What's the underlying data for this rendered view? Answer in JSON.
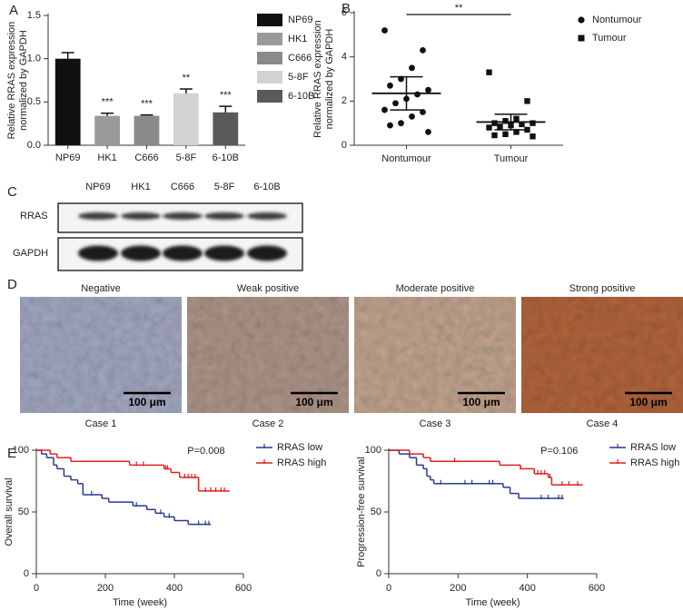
{
  "chart_data": [
    {
      "type": "bar",
      "panel": "A",
      "ylabel": [
        "Relative RRAS expression",
        "normalized by GAPDH"
      ],
      "categories": [
        "NP69",
        "HK1",
        "C666",
        "5-8F",
        "6-10B"
      ],
      "values": [
        1.0,
        0.34,
        0.34,
        0.6,
        0.38
      ],
      "errors": [
        0.07,
        0.03,
        0.01,
        0.05,
        0.07
      ],
      "colors": [
        "#111111",
        "#9a9a9a",
        "#8a8a8a",
        "#d2d2d2",
        "#5a5a5a"
      ],
      "significance": [
        null,
        "***",
        "***",
        "**",
        "***"
      ],
      "ylim": [
        0,
        1.5
      ],
      "yticks": [
        {
          "value": 0,
          "label": "0.0"
        },
        0.5,
        {
          "value": 1,
          "label": "1.0"
        },
        1.5
      ],
      "legend": "right"
    },
    {
      "type": "scatter",
      "panel": "B",
      "ylabel": [
        "Relative RRAS expression",
        "normalized by GAPDH"
      ],
      "categories": [
        "Nontumour",
        "Tumour"
      ],
      "series": [
        {
          "name": "Nontumour",
          "marker": "circle",
          "color": "#111111",
          "values": [
            5.2,
            4.3,
            3.5,
            3.0,
            2.7,
            2.5,
            2.3,
            2.1,
            1.9,
            1.6,
            1.5,
            1.3,
            1.0,
            0.9,
            0.6
          ],
          "mean": 2.35,
          "error": 0.75
        },
        {
          "name": "Tumour",
          "marker": "square",
          "color": "#111111",
          "values": [
            3.3,
            2.0,
            1.2,
            1.1,
            1.0,
            1.0,
            0.95,
            0.9,
            0.85,
            0.8,
            0.7,
            0.6,
            0.5,
            0.45,
            0.4
          ],
          "mean": 1.05,
          "error": 0.35
        }
      ],
      "significance": "**",
      "ylim": [
        0,
        6
      ],
      "yticks": [
        0,
        2,
        4,
        6
      ],
      "legend": "right"
    },
    {
      "type": "line",
      "step": true,
      "panel": "E",
      "ylabel": "Overall survival",
      "xlabel": "Time (week)",
      "annotation": "P=0.008",
      "series": [
        {
          "name": "RRAS low",
          "color": "#2b3990",
          "x": [
            0,
            15,
            30,
            50,
            60,
            80,
            100,
            120,
            135,
            190,
            210,
            280,
            320,
            345,
            370,
            400,
            440,
            505
          ],
          "values": [
            100,
            97,
            94,
            88,
            85,
            79,
            76,
            73,
            64,
            61,
            58,
            55,
            52,
            49,
            46,
            43,
            40,
            40
          ],
          "censored": [
            160,
            290,
            360,
            385,
            470,
            490,
            500
          ]
        },
        {
          "name": "RRAS high",
          "color": "#e0201f",
          "x": [
            0,
            40,
            60,
            100,
            270,
            370,
            390,
            415,
            470,
            560
          ],
          "values": [
            100,
            97,
            94,
            91,
            88,
            85,
            82,
            78,
            67,
            67
          ],
          "censored": [
            290,
            310,
            375,
            380,
            430,
            440,
            450,
            460,
            490,
            505,
            520,
            535,
            545
          ]
        }
      ],
      "xlim": [
        0,
        600
      ],
      "xticks": [
        0,
        200,
        400,
        600
      ],
      "ylim": [
        0,
        100
      ],
      "yticks": [
        0,
        50,
        100
      ],
      "legend": "top right"
    },
    {
      "type": "line",
      "step": true,
      "ylabel": "Progression-free survival",
      "xlabel": "Time (week)",
      "annotation": "P=0.106",
      "series": [
        {
          "name": "RRAS low",
          "color": "#2b3990",
          "x": [
            0,
            30,
            60,
            80,
            100,
            110,
            120,
            130,
            330,
            350,
            375,
            505
          ],
          "values": [
            100,
            97,
            94,
            88,
            85,
            79,
            76,
            73,
            70,
            65,
            61,
            61
          ],
          "censored": [
            150,
            220,
            240,
            290,
            300,
            440,
            460,
            490,
            500
          ]
        },
        {
          "name": "RRAS high",
          "color": "#e0201f",
          "x": [
            0,
            60,
            100,
            120,
            320,
            380,
            420,
            460,
            470,
            560
          ],
          "values": [
            100,
            97,
            94,
            91,
            88,
            85,
            81,
            78,
            72,
            72
          ],
          "censored": [
            190,
            380,
            430,
            440,
            450,
            465,
            500,
            520,
            545
          ]
        }
      ],
      "xlim": [
        0,
        600
      ],
      "xticks": [
        0,
        200,
        400,
        600
      ],
      "ylim": [
        0,
        100
      ],
      "yticks": [
        0,
        50,
        100
      ],
      "legend": "top right"
    }
  ],
  "blot": {
    "panel": "C",
    "lanes": [
      "NP69",
      "HK1",
      "C666",
      "5-8F",
      "6-10B"
    ],
    "rows": [
      "RRAS",
      "GAPDH"
    ]
  },
  "ihc": {
    "panel": "D",
    "images": [
      {
        "title": "Negative",
        "scale_bar": "100 μm",
        "case": "Case  1"
      },
      {
        "title": "Weak positive",
        "scale_bar": "100 μm",
        "case": "Case 2"
      },
      {
        "title": "Moderate positive",
        "scale_bar": "100 μm",
        "case": "Case 3"
      },
      {
        "title": "Strong positive",
        "scale_bar": "100 μm",
        "case": "Case 4"
      }
    ]
  }
}
